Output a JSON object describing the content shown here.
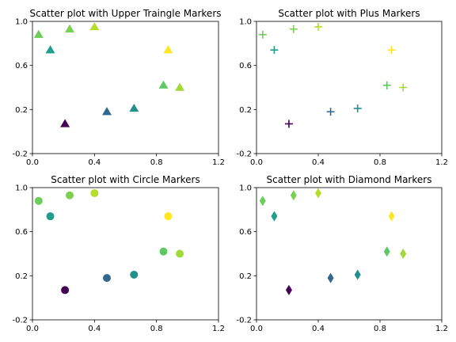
{
  "chart_data": [
    {
      "type": "scatter",
      "title": "Scatter plot with Upper Traingle Markers",
      "marker": "triangle-up",
      "xlim": [
        0,
        1.2
      ],
      "ylim": [
        -0.2,
        1.0
      ],
      "xticks": [
        "0.0",
        "0.4",
        "0.8",
        "1.2"
      ],
      "yticks": [
        "-0.2",
        "0.2",
        "0.6",
        "1.0"
      ],
      "points": [
        {
          "x": 0.04,
          "y": 0.88,
          "color": "#6ccd5a"
        },
        {
          "x": 0.115,
          "y": 0.74,
          "color": "#1f9e89"
        },
        {
          "x": 0.21,
          "y": 0.07,
          "color": "#440154"
        },
        {
          "x": 0.24,
          "y": 0.93,
          "color": "#7ad151"
        },
        {
          "x": 0.4,
          "y": 0.95,
          "color": "#b5de2b"
        },
        {
          "x": 0.48,
          "y": 0.18,
          "color": "#31688e"
        },
        {
          "x": 0.655,
          "y": 0.21,
          "color": "#21918c"
        },
        {
          "x": 0.845,
          "y": 0.42,
          "color": "#5ec962"
        },
        {
          "x": 0.875,
          "y": 0.74,
          "color": "#fde725"
        },
        {
          "x": 0.95,
          "y": 0.4,
          "color": "#a0da39"
        }
      ]
    },
    {
      "type": "scatter",
      "title": "Scatter plot with Plus Markers",
      "marker": "plus",
      "xlim": [
        0,
        1.2
      ],
      "ylim": [
        -0.2,
        1.0
      ],
      "xticks": [
        "0.0",
        "0.4",
        "0.8",
        "1.2"
      ],
      "yticks": [
        "-0.2",
        "0.2",
        "0.6",
        "1.0"
      ],
      "points": [
        {
          "x": 0.04,
          "y": 0.88,
          "color": "#6ccd5a"
        },
        {
          "x": 0.115,
          "y": 0.74,
          "color": "#1f9e89"
        },
        {
          "x": 0.21,
          "y": 0.07,
          "color": "#440154"
        },
        {
          "x": 0.24,
          "y": 0.93,
          "color": "#7ad151"
        },
        {
          "x": 0.4,
          "y": 0.95,
          "color": "#b5de2b"
        },
        {
          "x": 0.48,
          "y": 0.18,
          "color": "#31688e"
        },
        {
          "x": 0.655,
          "y": 0.21,
          "color": "#21918c"
        },
        {
          "x": 0.845,
          "y": 0.42,
          "color": "#5ec962"
        },
        {
          "x": 0.875,
          "y": 0.74,
          "color": "#fde725"
        },
        {
          "x": 0.95,
          "y": 0.4,
          "color": "#a0da39"
        }
      ]
    },
    {
      "type": "scatter",
      "title": "Scatter plot with Circle Markers",
      "marker": "circle",
      "xlim": [
        0,
        1.2
      ],
      "ylim": [
        -0.2,
        1.0
      ],
      "xticks": [
        "0.0",
        "0.4",
        "0.8",
        "1.2"
      ],
      "yticks": [
        "-0.2",
        "0.2",
        "0.6",
        "1.0"
      ],
      "points": [
        {
          "x": 0.04,
          "y": 0.88,
          "color": "#6ccd5a"
        },
        {
          "x": 0.115,
          "y": 0.74,
          "color": "#1f9e89"
        },
        {
          "x": 0.21,
          "y": 0.07,
          "color": "#440154"
        },
        {
          "x": 0.24,
          "y": 0.93,
          "color": "#7ad151"
        },
        {
          "x": 0.4,
          "y": 0.95,
          "color": "#b5de2b"
        },
        {
          "x": 0.48,
          "y": 0.18,
          "color": "#31688e"
        },
        {
          "x": 0.655,
          "y": 0.21,
          "color": "#21918c"
        },
        {
          "x": 0.845,
          "y": 0.42,
          "color": "#5ec962"
        },
        {
          "x": 0.875,
          "y": 0.74,
          "color": "#fde725"
        },
        {
          "x": 0.95,
          "y": 0.4,
          "color": "#a0da39"
        }
      ]
    },
    {
      "type": "scatter",
      "title": "Scatter plot with Diamond Markers",
      "marker": "diamond",
      "xlim": [
        0,
        1.2
      ],
      "ylim": [
        -0.2,
        1.0
      ],
      "xticks": [
        "0.0",
        "0.4",
        "0.8",
        "1.2"
      ],
      "yticks": [
        "-0.2",
        "0.2",
        "0.6",
        "1.0"
      ],
      "points": [
        {
          "x": 0.04,
          "y": 0.88,
          "color": "#6ccd5a"
        },
        {
          "x": 0.115,
          "y": 0.74,
          "color": "#1f9e89"
        },
        {
          "x": 0.21,
          "y": 0.07,
          "color": "#440154"
        },
        {
          "x": 0.24,
          "y": 0.93,
          "color": "#7ad151"
        },
        {
          "x": 0.4,
          "y": 0.95,
          "color": "#b5de2b"
        },
        {
          "x": 0.48,
          "y": 0.18,
          "color": "#31688e"
        },
        {
          "x": 0.655,
          "y": 0.21,
          "color": "#21918c"
        },
        {
          "x": 0.845,
          "y": 0.42,
          "color": "#5ec962"
        },
        {
          "x": 0.875,
          "y": 0.74,
          "color": "#fde725"
        },
        {
          "x": 0.95,
          "y": 0.4,
          "color": "#a0da39"
        }
      ]
    }
  ]
}
